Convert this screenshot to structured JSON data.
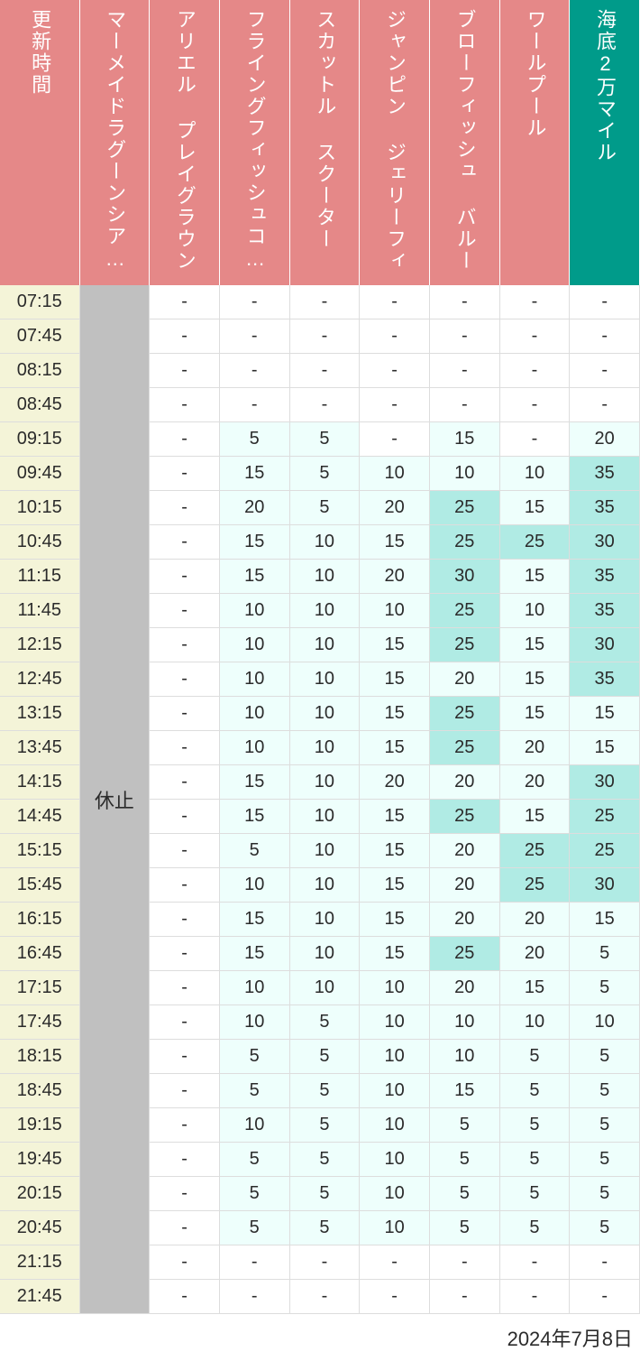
{
  "date": "2024年7月8日",
  "closed_text": "休止",
  "colors": {
    "header_bg": "#e58888",
    "header_highlight_bg": "#009b8a",
    "header_text": "#ffffff",
    "time_bg": "#f4f4d8",
    "closed_bg": "#c0c0c0",
    "wait_none_bg": "#ffffff",
    "wait_low_bg": "#eefffc",
    "wait_mid_bg": "#b0ebe4",
    "text": "#2b2b2b",
    "border": "#dddddd"
  },
  "thresholds": {
    "low_min": 1,
    "mid_min": 25
  },
  "columns": [
    {
      "label": "更新時間",
      "highlight": false
    },
    {
      "label": "マーメイドラグーンシア…",
      "highlight": false
    },
    {
      "label": "アリエル プレイグラウンド",
      "highlight": false
    },
    {
      "label": "フライングフィッシュコ…",
      "highlight": false
    },
    {
      "label": "スカットル スクーター",
      "highlight": false
    },
    {
      "label": "ジャンピン ジェリーフィ…",
      "highlight": false
    },
    {
      "label": "ブローフィッシュ バルー…",
      "highlight": false
    },
    {
      "label": "ワールプール",
      "highlight": false
    },
    {
      "label": "海底2万マイル",
      "highlight": true
    }
  ],
  "times": [
    "07:15",
    "07:45",
    "08:15",
    "08:45",
    "09:15",
    "09:45",
    "10:15",
    "10:45",
    "11:15",
    "11:45",
    "12:15",
    "12:45",
    "13:15",
    "13:45",
    "14:15",
    "14:45",
    "15:15",
    "15:45",
    "16:15",
    "16:45",
    "17:15",
    "17:45",
    "18:15",
    "18:45",
    "19:15",
    "19:45",
    "20:15",
    "20:45",
    "21:15",
    "21:45"
  ],
  "data": [
    [
      "-",
      "-",
      "-",
      "-",
      "-",
      "-",
      "-",
      "-"
    ],
    [
      "-",
      "-",
      "-",
      "-",
      "-",
      "-",
      "-",
      "-"
    ],
    [
      "-",
      "-",
      "-",
      "-",
      "-",
      "-",
      "-",
      "-"
    ],
    [
      "-",
      "-",
      "-",
      "-",
      "-",
      "-",
      "-",
      "-"
    ],
    [
      "-",
      "-",
      "5",
      "5",
      "-",
      "15",
      "-",
      "20"
    ],
    [
      "-",
      "-",
      "15",
      "5",
      "10",
      "10",
      "10",
      "35"
    ],
    [
      "-",
      "-",
      "20",
      "5",
      "20",
      "25",
      "15",
      "35"
    ],
    [
      "-",
      "-",
      "15",
      "10",
      "15",
      "25",
      "25",
      "30"
    ],
    [
      "-",
      "-",
      "15",
      "10",
      "20",
      "30",
      "15",
      "35"
    ],
    [
      "-",
      "-",
      "10",
      "10",
      "10",
      "25",
      "10",
      "35"
    ],
    [
      "-",
      "-",
      "10",
      "10",
      "15",
      "25",
      "15",
      "30"
    ],
    [
      "-",
      "-",
      "10",
      "10",
      "15",
      "20",
      "15",
      "35"
    ],
    [
      "-",
      "-",
      "10",
      "10",
      "15",
      "25",
      "15",
      "15"
    ],
    [
      "-",
      "-",
      "10",
      "10",
      "15",
      "25",
      "20",
      "15"
    ],
    [
      "-",
      "-",
      "15",
      "10",
      "20",
      "20",
      "20",
      "30"
    ],
    [
      "-",
      "-",
      "15",
      "10",
      "15",
      "25",
      "15",
      "25"
    ],
    [
      "-",
      "-",
      "5",
      "10",
      "15",
      "20",
      "25",
      "25"
    ],
    [
      "-",
      "-",
      "10",
      "10",
      "15",
      "20",
      "25",
      "30"
    ],
    [
      "-",
      "-",
      "15",
      "10",
      "15",
      "20",
      "20",
      "15"
    ],
    [
      "-",
      "-",
      "15",
      "10",
      "15",
      "25",
      "20",
      "5"
    ],
    [
      "-",
      "-",
      "10",
      "10",
      "10",
      "20",
      "15",
      "5"
    ],
    [
      "-",
      "-",
      "10",
      "5",
      "10",
      "10",
      "10",
      "10"
    ],
    [
      "-",
      "-",
      "5",
      "5",
      "10",
      "10",
      "5",
      "5"
    ],
    [
      "-",
      "-",
      "5",
      "5",
      "10",
      "15",
      "5",
      "5"
    ],
    [
      "-",
      "-",
      "10",
      "5",
      "10",
      "5",
      "5",
      "5"
    ],
    [
      "-",
      "-",
      "5",
      "5",
      "10",
      "5",
      "5",
      "5"
    ],
    [
      "-",
      "-",
      "5",
      "5",
      "10",
      "5",
      "5",
      "5"
    ],
    [
      "-",
      "-",
      "5",
      "5",
      "10",
      "5",
      "5",
      "5"
    ],
    [
      "-",
      "-",
      "-",
      "-",
      "-",
      "-",
      "-",
      "-"
    ],
    [
      "-",
      "-",
      "-",
      "-",
      "-",
      "-",
      "-",
      "-"
    ]
  ]
}
